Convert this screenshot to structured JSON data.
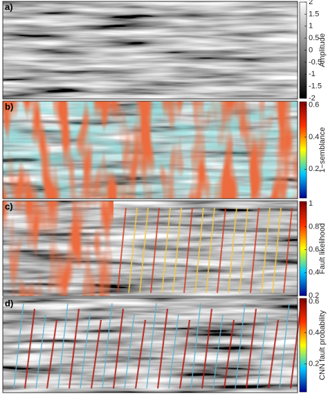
{
  "chart_data": [
    {
      "type": "heatmap",
      "panel_label": "a)",
      "colorbar": {
        "label": "Amplitude",
        "colormap": [
          "#000000",
          "#ffffff"
        ],
        "lim": [
          -2,
          2
        ],
        "ticks": [
          -2,
          -1.5,
          -1,
          -0.5,
          0,
          0.5,
          1,
          1.5,
          2
        ]
      }
    },
    {
      "type": "heatmap",
      "panel_label": "b)",
      "colorbar": {
        "label": "1−semblance",
        "colormap": [
          "#00008f",
          "#00c8ff",
          "#ffff00",
          "#ff3000",
          "#800000"
        ],
        "lim": [
          0.02,
          0.62
        ],
        "ticks": [
          0.2,
          0.4,
          0.6
        ]
      }
    },
    {
      "type": "heatmap",
      "panel_label": "c)",
      "colorbar": {
        "label": "Fault likelihood",
        "colormap": [
          "#00008f",
          "#00c8ff",
          "#ffff00",
          "#ff3000",
          "#800000"
        ],
        "lim": [
          0.2,
          1.02
        ],
        "ticks": [
          0.2,
          0.4,
          0.6,
          0.8,
          1
        ]
      }
    },
    {
      "type": "heatmap",
      "panel_label": "d)",
      "colorbar": {
        "label": "CNN fault probability",
        "colormap": [
          "#00008f",
          "#00c8ff",
          "#ffff00",
          "#ff3000",
          "#800000"
        ],
        "lim": [
          0.02,
          0.62
        ],
        "ticks": [
          0.2,
          0.4,
          0.6
        ]
      }
    }
  ]
}
